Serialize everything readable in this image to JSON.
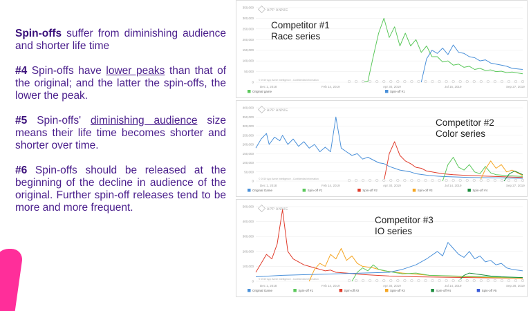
{
  "text": {
    "p1_bold": "Spin-offs",
    "p1_rest": " suffer from diminishing audience and shorter life time",
    "p2_num": "#4",
    "p2_pre": " Spin-offs have ",
    "p2_u": "lower peaks",
    "p2_post": " than that of the original; and the latter the spin-offs, the lower the peak.",
    "p3_num": "#5",
    "p3_pre": " Spin-offs' ",
    "p3_u": "diminishing audience",
    "p3_post": " size means their life time becomes shorter and shorter over time.",
    "p4_num": "#6",
    "p4_rest": " Spin-offs should be released at the beginning of the decline in audience of the original. Further spin-off releases tend to be more and more frequent."
  },
  "brand": "APP ANNIE",
  "copyright": "© 2019 App Annie Intelligence - Confidential Information",
  "colors": {
    "text": "#4a1e8c",
    "accent": "#ff2e9a"
  },
  "chart_data": [
    {
      "type": "line",
      "label_line1": "Competitor #1",
      "label_line2": "Race series",
      "yticks": [
        "350,000",
        "300,000",
        "250,000",
        "200,000",
        "150,000",
        "100,000",
        "50,000",
        "0"
      ],
      "xticks": [
        "Dec 1, 2018",
        "Feb 14, 2019",
        "Apr 30, 2019",
        "Jul 15, 2019",
        "Sep 27, 2019"
      ],
      "legend": [
        {
          "name": "Original game",
          "color": "#5cc85c"
        },
        {
          "name": "Spin-off #1",
          "color": "#4a90d9"
        }
      ],
      "ymax": 350000,
      "series": [
        {
          "name": "Original game",
          "color": "#5cc85c",
          "points": [
            [
              0.4,
              0
            ],
            [
              0.42,
              5000
            ],
            [
              0.44,
              120000
            ],
            [
              0.46,
              230000
            ],
            [
              0.48,
              300000
            ],
            [
              0.5,
              210000
            ],
            [
              0.52,
              260000
            ],
            [
              0.54,
              170000
            ],
            [
              0.56,
              230000
            ],
            [
              0.58,
              170000
            ],
            [
              0.6,
              200000
            ],
            [
              0.62,
              140000
            ],
            [
              0.64,
              170000
            ],
            [
              0.66,
              120000
            ],
            [
              0.68,
              120000
            ],
            [
              0.7,
              95000
            ],
            [
              0.72,
              100000
            ],
            [
              0.74,
              80000
            ],
            [
              0.76,
              85000
            ],
            [
              0.78,
              70000
            ],
            [
              0.8,
              75000
            ],
            [
              0.82,
              60000
            ],
            [
              0.84,
              65000
            ],
            [
              0.86,
              55000
            ],
            [
              0.88,
              58000
            ],
            [
              0.9,
              50000
            ],
            [
              0.92,
              52000
            ],
            [
              0.94,
              45000
            ],
            [
              0.96,
              48000
            ],
            [
              1.0,
              40000
            ]
          ]
        },
        {
          "name": "Spin-off #1",
          "color": "#4a90d9",
          "points": [
            [
              0.62,
              0
            ],
            [
              0.64,
              110000
            ],
            [
              0.66,
              150000
            ],
            [
              0.68,
              135000
            ],
            [
              0.7,
              160000
            ],
            [
              0.72,
              130000
            ],
            [
              0.74,
              175000
            ],
            [
              0.76,
              140000
            ],
            [
              0.78,
              135000
            ],
            [
              0.8,
              120000
            ],
            [
              0.82,
              115000
            ],
            [
              0.84,
              100000
            ],
            [
              0.86,
              105000
            ],
            [
              0.88,
              90000
            ],
            [
              0.9,
              85000
            ],
            [
              0.92,
              80000
            ],
            [
              0.94,
              75000
            ],
            [
              0.96,
              65000
            ],
            [
              1.0,
              60000
            ]
          ]
        }
      ]
    },
    {
      "type": "line",
      "label_line1": "Competitor #2",
      "label_line2": "Color series",
      "yticks": [
        "400,000",
        "350,000",
        "300,000",
        "250,000",
        "200,000",
        "150,000",
        "100,000",
        "50,000",
        "0"
      ],
      "xticks": [
        "Dec 1, 2018",
        "Feb 14, 2019",
        "Apr 30, 2019",
        "Jul 14, 2019",
        "Sep 27, 2019"
      ],
      "legend": [
        {
          "name": "Original Game",
          "color": "#4a90d9"
        },
        {
          "name": "Spin-off #1",
          "color": "#5cc85c"
        },
        {
          "name": "Spin-off #2",
          "color": "#e03c2c"
        },
        {
          "name": "Spin-off #3",
          "color": "#f5a623"
        },
        {
          "name": "Spin-off #4",
          "color": "#1a8c3c"
        }
      ],
      "ymax": 400000,
      "series": [
        {
          "name": "Original Game",
          "color": "#4a90d9",
          "points": [
            [
              0.0,
              180000
            ],
            [
              0.02,
              230000
            ],
            [
              0.04,
              260000
            ],
            [
              0.05,
              200000
            ],
            [
              0.07,
              240000
            ],
            [
              0.09,
              220000
            ],
            [
              0.1,
              250000
            ],
            [
              0.12,
              200000
            ],
            [
              0.14,
              230000
            ],
            [
              0.16,
              190000
            ],
            [
              0.18,
              215000
            ],
            [
              0.2,
              180000
            ],
            [
              0.22,
              200000
            ],
            [
              0.24,
              160000
            ],
            [
              0.26,
              185000
            ],
            [
              0.28,
              160000
            ],
            [
              0.3,
              350000
            ],
            [
              0.32,
              180000
            ],
            [
              0.34,
              160000
            ],
            [
              0.36,
              140000
            ],
            [
              0.38,
              150000
            ],
            [
              0.4,
              120000
            ],
            [
              0.42,
              130000
            ],
            [
              0.44,
              115000
            ],
            [
              0.46,
              100000
            ],
            [
              0.48,
              95000
            ],
            [
              0.5,
              80000
            ],
            [
              0.52,
              70000
            ],
            [
              0.54,
              60000
            ],
            [
              0.56,
              55000
            ],
            [
              0.58,
              50000
            ],
            [
              0.6,
              40000
            ],
            [
              0.65,
              30000
            ],
            [
              0.7,
              25000
            ],
            [
              0.8,
              20000
            ],
            [
              1.0,
              15000
            ]
          ]
        },
        {
          "name": "Spin-off #2",
          "color": "#e03c2c",
          "points": [
            [
              0.48,
              0
            ],
            [
              0.5,
              150000
            ],
            [
              0.52,
              215000
            ],
            [
              0.54,
              140000
            ],
            [
              0.56,
              110000
            ],
            [
              0.58,
              95000
            ],
            [
              0.6,
              75000
            ],
            [
              0.62,
              70000
            ],
            [
              0.64,
              55000
            ],
            [
              0.66,
              50000
            ],
            [
              0.68,
              45000
            ],
            [
              0.7,
              40000
            ],
            [
              0.74,
              35000
            ],
            [
              0.8,
              30000
            ],
            [
              0.9,
              25000
            ],
            [
              1.0,
              20000
            ]
          ]
        },
        {
          "name": "Spin-off #1",
          "color": "#5cc85c",
          "points": [
            [
              0.7,
              0
            ],
            [
              0.72,
              90000
            ],
            [
              0.74,
              130000
            ],
            [
              0.76,
              75000
            ],
            [
              0.78,
              60000
            ],
            [
              0.8,
              90000
            ],
            [
              0.82,
              50000
            ],
            [
              0.84,
              40000
            ],
            [
              0.86,
              80000
            ],
            [
              0.88,
              45000
            ],
            [
              0.9,
              35000
            ],
            [
              0.94,
              30000
            ],
            [
              1.0,
              25000
            ]
          ]
        },
        {
          "name": "Spin-off #3",
          "color": "#f5a623",
          "points": [
            [
              0.84,
              0
            ],
            [
              0.86,
              65000
            ],
            [
              0.88,
              110000
            ],
            [
              0.9,
              70000
            ],
            [
              0.92,
              90000
            ],
            [
              0.94,
              50000
            ],
            [
              0.96,
              60000
            ],
            [
              1.0,
              30000
            ]
          ]
        },
        {
          "name": "Spin-off #4",
          "color": "#1a8c3c",
          "points": [
            [
              0.93,
              0
            ],
            [
              0.95,
              40000
            ],
            [
              0.97,
              55000
            ],
            [
              1.0,
              35000
            ]
          ]
        }
      ]
    },
    {
      "type": "line",
      "label_line1": "Competitor #3",
      "label_line2": "IO series",
      "yticks": [
        "500,000",
        "400,000",
        "300,000",
        "200,000",
        "100,000",
        "0"
      ],
      "xticks": [
        "Dec 1, 2018",
        "Feb 14, 2019",
        "Apr 30, 2019",
        "Jul 14, 2019",
        "Sep 28, 2019"
      ],
      "legend": [
        {
          "name": "Original Game",
          "color": "#4a90d9"
        },
        {
          "name": "Spin-off #1",
          "color": "#5cc85c"
        },
        {
          "name": "Spin-off #2",
          "color": "#e03c2c"
        },
        {
          "name": "Spin-off #3",
          "color": "#f5a623"
        },
        {
          "name": "Spin-off #4",
          "color": "#1a8c3c"
        },
        {
          "name": "Spin-off #5",
          "color": "#3a5bd9"
        }
      ],
      "ymax": 500000,
      "series": [
        {
          "name": "Spin-off #2",
          "color": "#e03c2c",
          "points": [
            [
              0.0,
              60000
            ],
            [
              0.02,
              120000
            ],
            [
              0.04,
              180000
            ],
            [
              0.06,
              150000
            ],
            [
              0.08,
              250000
            ],
            [
              0.1,
              480000
            ],
            [
              0.12,
              200000
            ],
            [
              0.14,
              150000
            ],
            [
              0.16,
              130000
            ],
            [
              0.18,
              110000
            ],
            [
              0.2,
              100000
            ],
            [
              0.22,
              90000
            ],
            [
              0.24,
              80000
            ],
            [
              0.26,
              70000
            ],
            [
              0.28,
              75000
            ],
            [
              0.3,
              60000
            ],
            [
              0.34,
              55000
            ],
            [
              0.4,
              45000
            ],
            [
              0.5,
              35000
            ],
            [
              0.6,
              30000
            ],
            [
              0.8,
              25000
            ],
            [
              1.0,
              20000
            ]
          ]
        },
        {
          "name": "Spin-off #3",
          "color": "#f5a623",
          "points": [
            [
              0.2,
              0
            ],
            [
              0.22,
              80000
            ],
            [
              0.24,
              120000
            ],
            [
              0.26,
              100000
            ],
            [
              0.28,
              180000
            ],
            [
              0.3,
              150000
            ],
            [
              0.32,
              220000
            ],
            [
              0.34,
              140000
            ],
            [
              0.36,
              170000
            ],
            [
              0.38,
              120000
            ],
            [
              0.4,
              100000
            ],
            [
              0.44,
              90000
            ],
            [
              0.48,
              70000
            ],
            [
              0.55,
              55000
            ],
            [
              0.65,
              40000
            ],
            [
              0.8,
              30000
            ],
            [
              1.0,
              20000
            ]
          ]
        },
        {
          "name": "Spin-off #1",
          "color": "#5cc85c",
          "points": [
            [
              0.36,
              0
            ],
            [
              0.38,
              60000
            ],
            [
              0.4,
              90000
            ],
            [
              0.42,
              70000
            ],
            [
              0.44,
              110000
            ],
            [
              0.46,
              80000
            ],
            [
              0.5,
              65000
            ],
            [
              0.55,
              50000
            ],
            [
              0.6,
              55000
            ],
            [
              0.65,
              40000
            ],
            [
              0.75,
              35000
            ],
            [
              0.85,
              30000
            ],
            [
              1.0,
              25000
            ]
          ]
        },
        {
          "name": "Original Game",
          "color": "#4a90d9",
          "points": [
            [
              0.0,
              30000
            ],
            [
              0.1,
              40000
            ],
            [
              0.2,
              45000
            ],
            [
              0.3,
              50000
            ],
            [
              0.4,
              55000
            ],
            [
              0.5,
              60000
            ],
            [
              0.55,
              80000
            ],
            [
              0.6,
              110000
            ],
            [
              0.64,
              150000
            ],
            [
              0.68,
              200000
            ],
            [
              0.7,
              170000
            ],
            [
              0.72,
              260000
            ],
            [
              0.74,
              220000
            ],
            [
              0.76,
              180000
            ],
            [
              0.78,
              160000
            ],
            [
              0.8,
              200000
            ],
            [
              0.82,
              150000
            ],
            [
              0.84,
              170000
            ],
            [
              0.86,
              130000
            ],
            [
              0.88,
              140000
            ],
            [
              0.9,
              110000
            ],
            [
              0.92,
              120000
            ],
            [
              0.94,
              90000
            ],
            [
              0.96,
              80000
            ],
            [
              1.0,
              70000
            ]
          ]
        },
        {
          "name": "Spin-off #4",
          "color": "#1a8c3c",
          "points": [
            [
              0.76,
              0
            ],
            [
              0.78,
              40000
            ],
            [
              0.8,
              55000
            ],
            [
              0.84,
              45000
            ],
            [
              0.88,
              35000
            ],
            [
              0.92,
              30000
            ],
            [
              1.0,
              25000
            ]
          ]
        }
      ]
    }
  ]
}
